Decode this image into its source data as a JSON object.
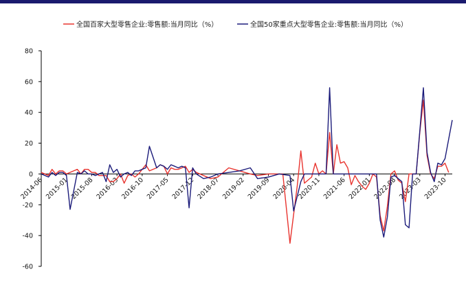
{
  "chart_data": {
    "type": "line",
    "title": "",
    "xlabel": "",
    "ylabel": "",
    "ylim": [
      -60,
      80
    ],
    "y_ticks": [
      80,
      60,
      40,
      20,
      0,
      -20,
      -40,
      -60
    ],
    "y_tick_labels": [
      "80",
      "60",
      "40",
      "20",
      "0",
      "-20",
      "-40",
      "-60"
    ],
    "x_tick_labels": [
      "2014-06",
      "2015-01",
      "2015-08",
      "2016-03",
      "2016-10",
      "2017-05",
      "2017-12",
      "2018-07",
      "2019-02",
      "2019-09",
      "2020-04",
      "2020-11",
      "2021-06",
      "2022-01",
      "2022-08",
      "2023-03",
      "2023-10"
    ],
    "grid": false,
    "legend_position": "top",
    "colors": {
      "series1": "#e8332e",
      "series2": "#1b1b7a",
      "top_bar": "#1a1a6e"
    },
    "series": [
      {
        "name": "全国百家大型零售企业:零售额:当月同比（%）",
        "color": "#e8332e",
        "points": [
          [
            "2014-06",
            1
          ],
          [
            "2014-08",
            -1
          ],
          [
            "2014-09",
            3
          ],
          [
            "2014-10",
            0
          ],
          [
            "2014-11",
            2
          ],
          [
            "2014-12",
            2
          ],
          [
            "2015-01",
            0
          ],
          [
            "2015-03",
            2
          ],
          [
            "2015-04",
            3
          ],
          [
            "2015-05",
            0
          ],
          [
            "2015-06",
            3
          ],
          [
            "2015-07",
            3
          ],
          [
            "2015-08",
            1
          ],
          [
            "2015-09",
            1
          ],
          [
            "2015-10",
            -1
          ],
          [
            "2015-12",
            -1
          ],
          [
            "2016-01",
            -5
          ],
          [
            "2016-02",
            -5
          ],
          [
            "2016-03",
            -3
          ],
          [
            "2016-04",
            0
          ],
          [
            "2016-05",
            -6
          ],
          [
            "2016-06",
            -1
          ],
          [
            "2016-07",
            0
          ],
          [
            "2016-08",
            -2
          ],
          [
            "2016-09",
            0
          ],
          [
            "2016-10",
            3
          ],
          [
            "2016-11",
            6
          ],
          [
            "2016-12",
            2
          ],
          [
            "2017-02",
            4
          ],
          [
            "2017-03",
            6
          ],
          [
            "2017-04",
            5
          ],
          [
            "2017-05",
            0
          ],
          [
            "2017-06",
            4
          ],
          [
            "2017-07",
            3
          ],
          [
            "2017-08",
            3
          ],
          [
            "2017-09",
            4
          ],
          [
            "2017-10",
            5
          ],
          [
            "2017-11",
            1
          ],
          [
            "2017-12",
            3
          ],
          [
            "2018-01",
            1
          ],
          [
            "2018-03",
            -1
          ],
          [
            "2018-05",
            -3
          ],
          [
            "2018-07",
            -2
          ],
          [
            "2018-10",
            4
          ],
          [
            "2019-01",
            2
          ],
          [
            "2019-04",
            0
          ],
          [
            "2019-06",
            -1
          ],
          [
            "2019-09",
            0
          ],
          [
            "2020-01",
            0
          ],
          [
            "2020-03",
            -45
          ],
          [
            "2020-05",
            -8
          ],
          [
            "2020-06",
            15
          ],
          [
            "2020-07",
            -6
          ],
          [
            "2020-09",
            -2
          ],
          [
            "2020-10",
            7
          ],
          [
            "2020-11",
            0
          ],
          [
            "2020-12",
            2
          ],
          [
            "2021-01",
            0
          ],
          [
            "2021-02",
            27
          ],
          [
            "2021-03",
            0
          ],
          [
            "2021-04",
            19
          ],
          [
            "2021-05",
            7
          ],
          [
            "2021-06",
            8
          ],
          [
            "2021-07",
            4
          ],
          [
            "2021-08",
            -7
          ],
          [
            "2021-09",
            -1
          ],
          [
            "2021-10",
            -5
          ],
          [
            "2021-11",
            -8
          ],
          [
            "2021-12",
            -10
          ],
          [
            "2022-01",
            -6
          ],
          [
            "2022-02",
            0
          ],
          [
            "2022-03",
            -2
          ],
          [
            "2022-04",
            -27
          ],
          [
            "2022-05",
            -37
          ],
          [
            "2022-06",
            -21
          ],
          [
            "2022-07",
            0
          ],
          [
            "2022-08",
            2
          ],
          [
            "2022-09",
            -4
          ],
          [
            "2022-10",
            -6
          ],
          [
            "2022-11",
            -18
          ],
          [
            "2022-12",
            0
          ],
          [
            "2023-01",
            0
          ],
          [
            "2023-02",
            0
          ],
          [
            "2023-03",
            27
          ],
          [
            "2023-04",
            48
          ],
          [
            "2023-05",
            12
          ],
          [
            "2023-06",
            0
          ],
          [
            "2023-07",
            -3
          ],
          [
            "2023-08",
            5
          ],
          [
            "2023-09",
            5
          ],
          [
            "2023-10",
            7
          ],
          [
            "2023-11",
            1
          ]
        ]
      },
      {
        "name": "全国50家重点大型零售企业:零售额:当月同比（%）",
        "color": "#1b1b7a",
        "points": [
          [
            "2014-06",
            0
          ],
          [
            "2014-08",
            -2
          ],
          [
            "2014-09",
            1
          ],
          [
            "2014-10",
            -1
          ],
          [
            "2014-11",
            1
          ],
          [
            "2014-12",
            1
          ],
          [
            "2015-01",
            -1
          ],
          [
            "2015-02",
            -23
          ],
          [
            "2015-04",
            1
          ],
          [
            "2015-05",
            0
          ],
          [
            "2015-06",
            2
          ],
          [
            "2015-07",
            0
          ],
          [
            "2015-08",
            0
          ],
          [
            "2015-09",
            -1
          ],
          [
            "2015-11",
            1
          ],
          [
            "2015-12",
            -5
          ],
          [
            "2016-01",
            6
          ],
          [
            "2016-02",
            1
          ],
          [
            "2016-03",
            3
          ],
          [
            "2016-04",
            -2
          ],
          [
            "2016-05",
            0
          ],
          [
            "2016-06",
            1
          ],
          [
            "2016-07",
            -1
          ],
          [
            "2016-08",
            2
          ],
          [
            "2016-09",
            2
          ],
          [
            "2016-10",
            3
          ],
          [
            "2016-11",
            4
          ],
          [
            "2016-12",
            18
          ],
          [
            "2017-02",
            4
          ],
          [
            "2017-03",
            6
          ],
          [
            "2017-04",
            5
          ],
          [
            "2017-05",
            3
          ],
          [
            "2017-06",
            6
          ],
          [
            "2017-07",
            5
          ],
          [
            "2017-08",
            4
          ],
          [
            "2017-09",
            5
          ],
          [
            "2017-10",
            4
          ],
          [
            "2017-11",
            -22
          ],
          [
            "2017-12",
            4
          ],
          [
            "2018-01",
            0
          ],
          [
            "2018-03",
            -3
          ],
          [
            "2018-05",
            -2
          ],
          [
            "2018-07",
            0
          ],
          [
            "2018-10",
            1
          ],
          [
            "2019-01",
            2
          ],
          [
            "2019-04",
            4
          ],
          [
            "2019-06",
            -3
          ],
          [
            "2019-09",
            -2
          ],
          [
            "2019-12",
            0
          ],
          [
            "2020-03",
            -1
          ],
          [
            "2020-04",
            -24
          ],
          [
            "2020-06",
            -5
          ],
          [
            "2020-07",
            0
          ],
          [
            "2020-09",
            0
          ],
          [
            "2020-10",
            0
          ],
          [
            "2020-11",
            0
          ],
          [
            "2020-12",
            0
          ],
          [
            "2021-01",
            0
          ],
          [
            "2021-02",
            56
          ],
          [
            "2021-03",
            0
          ],
          [
            "2021-04",
            0
          ],
          [
            "2021-05",
            0
          ],
          [
            "2021-06",
            0
          ],
          [
            "2021-09",
            0
          ],
          [
            "2022-01",
            0
          ],
          [
            "2022-03",
            0
          ],
          [
            "2022-04",
            -30
          ],
          [
            "2022-05",
            -41
          ],
          [
            "2022-06",
            -28
          ],
          [
            "2022-07",
            -2
          ],
          [
            "2022-08",
            -1
          ],
          [
            "2022-09",
            -3
          ],
          [
            "2022-10",
            -5
          ],
          [
            "2022-11",
            -33
          ],
          [
            "2022-12",
            -35
          ],
          [
            "2023-01",
            0
          ],
          [
            "2023-02",
            0
          ],
          [
            "2023-03",
            28
          ],
          [
            "2023-04",
            56
          ],
          [
            "2023-05",
            14
          ],
          [
            "2023-06",
            1
          ],
          [
            "2023-07",
            -5
          ],
          [
            "2023-08",
            7
          ],
          [
            "2023-09",
            6
          ],
          [
            "2023-10",
            10
          ],
          [
            "2023-12",
            35
          ]
        ]
      }
    ]
  }
}
